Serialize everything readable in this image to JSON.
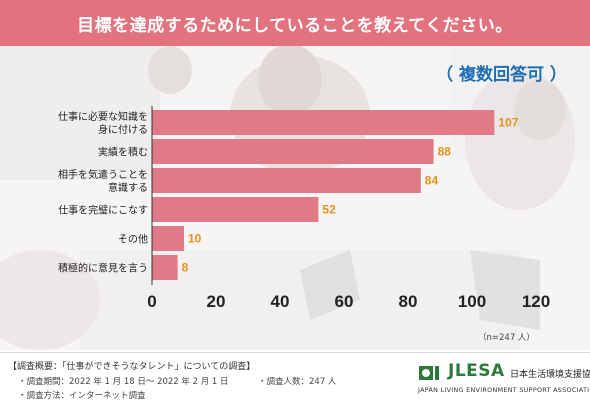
{
  "header": {
    "title": "目標を達成するためにしていることを教えてください。"
  },
  "multi_label": "（ 複数回答可 ）",
  "note": "（n=247 人）",
  "footer": {
    "title": "【調査概要：「仕事ができそうなタレント」についての調査】",
    "period": "・調査期間：2022 年 1 月 18 日〜 2022 年 2 月 1 日",
    "count": "・調査人数：247 人",
    "method": "・調査方法：インターネット調査"
  },
  "logo": {
    "name": "JLESA",
    "jp": "日本生活環境支援協会",
    "en": "JAPAN LIVING ENVIRONMENT SUPPORT ASSOCIATION"
  },
  "colors": {
    "header": "#e2727e",
    "bar": "#e07a86",
    "value_label": "#e8921e",
    "multi_label": "#1f6eb2",
    "logo_green": "#2c7a3a"
  },
  "chart_data": {
    "type": "bar",
    "orientation": "horizontal",
    "categories": [
      [
        "仕事に必要な知識を",
        "身に付ける"
      ],
      [
        "実績を積む"
      ],
      [
        "相手を気遣うことを",
        "意識する"
      ],
      [
        "仕事を完璧にこなす"
      ],
      [
        "その他"
      ],
      [
        "積極的に意見を言う"
      ]
    ],
    "values": [
      107,
      88,
      84,
      52,
      10,
      8
    ],
    "xlim": [
      0,
      120
    ],
    "xticks": [
      0,
      20,
      40,
      60,
      80,
      100,
      120
    ],
    "grid": false,
    "legend": "none"
  }
}
